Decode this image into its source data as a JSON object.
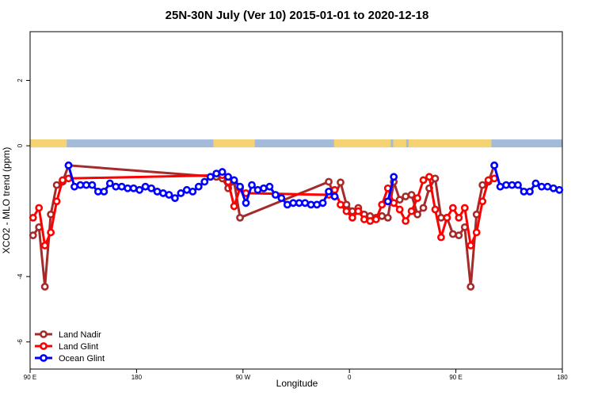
{
  "chart_data": {
    "type": "line",
    "title": "25N-30N July (Ver 10)   2015-01-01 to 2020-12-18",
    "x_label": "Longitude",
    "y_label": "XCO2 - MLO trend (ppm)",
    "xlim": [
      90,
      540
    ],
    "ylim": [
      -6.83,
      3.49
    ],
    "xticks": [
      {
        "value": 90,
        "label": "90 E"
      },
      180,
      {
        "value": 270,
        "label": "90 W"
      },
      {
        "value": 360,
        "label": "0"
      },
      {
        "value": 450,
        "label": "90 E"
      },
      {
        "value": 540,
        "label": "180"
      }
    ],
    "yticks": [
      -6,
      -4,
      0,
      2
    ],
    "legend": "bottom-left",
    "land_color": "#f5d372",
    "ocean_color": "#a3bbd9",
    "land_ranges": [
      [
        90,
        121
      ],
      [
        245,
        280
      ],
      [
        347,
        395
      ],
      [
        397,
        408
      ],
      [
        410,
        480
      ]
    ],
    "series": [
      {
        "name": "Land Nadir",
        "color": "#a52a2a",
        "x": [
          92.5,
          97.5,
          102.5,
          107.5,
          112.5,
          117.5,
          122.5,
          247.5,
          252.5,
          257.5,
          262.5,
          267.5,
          342.5,
          347.5,
          352.5,
          357.5,
          362.5,
          367.5,
          372.5,
          377.5,
          382.5,
          387.5,
          392.5,
          397.5,
          402.5,
          407.5,
          412.5,
          417.5,
          422.5,
          427.5,
          432.5,
          437.5,
          442.5,
          447.5,
          452.5,
          457.5,
          462.5,
          467.5,
          472.5,
          477.5,
          482.5
        ],
        "values": [
          -2.74,
          -2.49,
          -4.31,
          -2.1,
          -1.2,
          -1.1,
          -0.6,
          -0.95,
          -1.0,
          -1.3,
          -1.1,
          -2.2,
          -1.1,
          -1.55,
          -1.12,
          -1.8,
          -2.0,
          -1.9,
          -2.1,
          -2.15,
          -2.2,
          -2.15,
          -2.2,
          -1.1,
          -1.65,
          -1.55,
          -1.5,
          -2.1,
          -1.9,
          -1.3,
          -1.0,
          -2.2,
          -2.2,
          -2.7,
          -2.74,
          -2.49,
          -4.31,
          -2.1,
          -1.2,
          -1.1,
          -0.6
        ]
      },
      {
        "name": "Land Glint",
        "color": "#ff0000",
        "x": [
          92.5,
          97.5,
          102.5,
          107.5,
          112.5,
          117.5,
          122.5,
          252.5,
          257.5,
          262.5,
          267.5,
          272.5,
          342.5,
          347.5,
          352.5,
          357.5,
          362.5,
          367.5,
          372.5,
          377.5,
          382.5,
          387.5,
          392.5,
          397.5,
          402.5,
          407.5,
          412.5,
          417.5,
          422.5,
          427.5,
          432.5,
          437.5,
          442.5,
          447.5,
          452.5,
          457.5,
          462.5,
          467.5,
          472.5,
          477.5,
          482.5
        ],
        "values": [
          -2.2,
          -1.9,
          -3.05,
          -2.65,
          -1.7,
          -1.05,
          -1.0,
          -0.9,
          -1.1,
          -1.85,
          -1.3,
          -1.45,
          -1.5,
          -1.35,
          -1.8,
          -2.0,
          -2.2,
          -2.0,
          -2.25,
          -2.3,
          -2.25,
          -1.8,
          -1.3,
          -1.75,
          -1.95,
          -2.3,
          -2.0,
          -1.6,
          -1.05,
          -0.95,
          -1.95,
          -2.8,
          -2.2,
          -1.9,
          -2.2,
          -1.9,
          -3.05,
          -2.65,
          -1.7,
          -1.05,
          -1.0
        ]
      },
      {
        "name": "Ocean Glint",
        "color": "#0000ff",
        "x": [
          122.5,
          127.5,
          132.5,
          137.5,
          142.5,
          147.5,
          152.5,
          157.5,
          162.5,
          167.5,
          172.5,
          177.5,
          182.5,
          187.5,
          192.5,
          197.5,
          202.5,
          207.5,
          212.5,
          217.5,
          222.5,
          227.5,
          232.5,
          237.5,
          242.5,
          247.5,
          252.5,
          257.5,
          262.5,
          267.5,
          272.5,
          277.5,
          282.5,
          287.5,
          292.5,
          297.5,
          302.5,
          307.5,
          312.5,
          317.5,
          322.5,
          327.5,
          332.5,
          337.5,
          342.5,
          347.5,
          352.5,
          392.5,
          397.5,
          402.5,
          482.5,
          487.5,
          492.5,
          497.5,
          502.5,
          507.5,
          512.5,
          517.5,
          522.5,
          527.5,
          532.5,
          537.5
        ],
        "values": [
          -0.6,
          -1.25,
          -1.2,
          -1.2,
          -1.2,
          -1.4,
          -1.4,
          -1.15,
          -1.25,
          -1.25,
          -1.3,
          -1.3,
          -1.35,
          -1.25,
          -1.3,
          -1.4,
          -1.45,
          -1.5,
          -1.6,
          -1.45,
          -1.35,
          -1.4,
          -1.25,
          -1.1,
          -0.95,
          -0.85,
          -0.8,
          -0.95,
          -1.05,
          -1.25,
          -1.75,
          -1.2,
          -1.35,
          -1.3,
          -1.25,
          -1.5,
          -1.6,
          -1.8,
          -1.75,
          -1.75,
          -1.75,
          -1.8,
          -1.8,
          -1.75,
          -1.4,
          -1.55,
          null,
          -1.7,
          -0.95,
          null,
          -0.6,
          -1.25,
          -1.2,
          -1.2,
          -1.2,
          -1.4,
          -1.4,
          -1.15,
          -1.25,
          -1.25,
          -1.3,
          -1.35
        ]
      }
    ]
  }
}
